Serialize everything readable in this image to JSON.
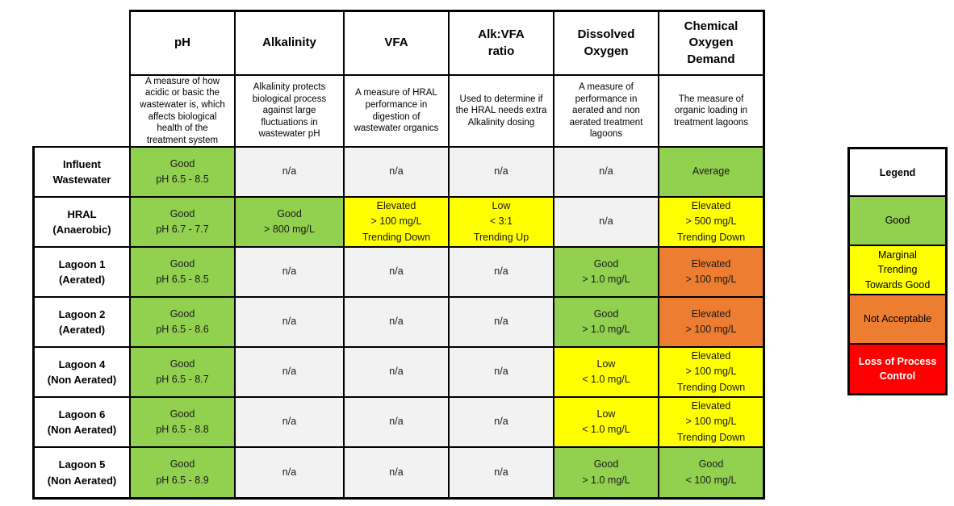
{
  "status_colors": {
    "good": "#92D050",
    "marginal": "#FFFF00",
    "not_acceptable": "#ED7D31",
    "loss_of_process_control": "#FF0000",
    "na": "#F2F2F2",
    "grid_line": "#000000",
    "background": "#FFFFFF"
  },
  "chart_data": {
    "type": "table",
    "columns": [
      {
        "title": "pH",
        "description": "A measure of how\nacidic or basic the\nwastewater is, which\naffects biological\nhealth of the\ntreatment system"
      },
      {
        "title": "Alkalinity",
        "description": "Alkalinity protects\nbiological process\nagainst large\nfluctuations in\nwastewater pH"
      },
      {
        "title": "VFA",
        "description": "A measure of HRAL\nperformance in\ndigestion of\nwastewater organics"
      },
      {
        "title": "Alk:VFA\nratio",
        "description": "Used to determine if\nthe HRAL needs extra\nAlkalinity dosing"
      },
      {
        "title": "Dissolved\nOxygen",
        "description": "A measure of\nperformance in\naerated and non\naerated treatment\nlagoons"
      },
      {
        "title": "Chemical\nOxygen\nDemand",
        "description": "The measure of\norganic loading in\ntreatment lagoons"
      }
    ],
    "rows": [
      {
        "label": "Influent\nWastewater",
        "cells": [
          {
            "text": "Good\npH 6.5 - 8.5",
            "status": "good"
          },
          {
            "text": "n/a",
            "status": "na"
          },
          {
            "text": "n/a",
            "status": "na"
          },
          {
            "text": "n/a",
            "status": "na"
          },
          {
            "text": "n/a",
            "status": "na"
          },
          {
            "text": "Average",
            "status": "good"
          }
        ]
      },
      {
        "label": "HRAL\n(Anaerobic)",
        "cells": [
          {
            "text": "Good\npH 6.7 - 7.7",
            "status": "good"
          },
          {
            "text": "Good\n> 800 mg/L",
            "status": "good"
          },
          {
            "text": "Elevated\n> 100 mg/L\nTrending Down",
            "status": "marginal"
          },
          {
            "text": "Low\n< 3:1\nTrending Up",
            "status": "marginal"
          },
          {
            "text": "n/a",
            "status": "na"
          },
          {
            "text": "Elevated\n> 500 mg/L\nTrending Down",
            "status": "marginal"
          }
        ]
      },
      {
        "label": "Lagoon 1\n(Aerated)",
        "cells": [
          {
            "text": "Good\npH 6.5 - 8.5",
            "status": "good"
          },
          {
            "text": "n/a",
            "status": "na"
          },
          {
            "text": "n/a",
            "status": "na"
          },
          {
            "text": "n/a",
            "status": "na"
          },
          {
            "text": "Good\n> 1.0 mg/L",
            "status": "good"
          },
          {
            "text": "Elevated\n> 100 mg/L",
            "status": "not_acceptable"
          }
        ]
      },
      {
        "label": "Lagoon 2\n(Aerated)",
        "cells": [
          {
            "text": "Good\npH 6.5 - 8.6",
            "status": "good"
          },
          {
            "text": "n/a",
            "status": "na"
          },
          {
            "text": "n/a",
            "status": "na"
          },
          {
            "text": "n/a",
            "status": "na"
          },
          {
            "text": "Good\n> 1.0 mg/L",
            "status": "good"
          },
          {
            "text": "Elevated\n> 100 mg/L",
            "status": "not_acceptable"
          }
        ]
      },
      {
        "label": "Lagoon 4\n(Non Aerated)",
        "cells": [
          {
            "text": "Good\npH 6.5 - 8.7",
            "status": "good"
          },
          {
            "text": "n/a",
            "status": "na"
          },
          {
            "text": "n/a",
            "status": "na"
          },
          {
            "text": "n/a",
            "status": "na"
          },
          {
            "text": "Low\n< 1.0 mg/L",
            "status": "marginal"
          },
          {
            "text": "Elevated\n> 100 mg/L\nTrending Down",
            "status": "marginal"
          }
        ]
      },
      {
        "label": "Lagoon 6\n(Non Aerated)",
        "cells": [
          {
            "text": "Good\npH 6.5 - 8.8",
            "status": "good"
          },
          {
            "text": "n/a",
            "status": "na"
          },
          {
            "text": "n/a",
            "status": "na"
          },
          {
            "text": "n/a",
            "status": "na"
          },
          {
            "text": "Low\n< 1.0 mg/L",
            "status": "marginal"
          },
          {
            "text": "Elevated\n> 100 mg/L\nTrending Down",
            "status": "marginal"
          }
        ]
      },
      {
        "label": "Lagoon 5\n(Non Aerated)",
        "cells": [
          {
            "text": "Good\npH 6.5 - 8.9",
            "status": "good"
          },
          {
            "text": "n/a",
            "status": "na"
          },
          {
            "text": "n/a",
            "status": "na"
          },
          {
            "text": "n/a",
            "status": "na"
          },
          {
            "text": "Good\n> 1.0 mg/L",
            "status": "good"
          },
          {
            "text": "Good\n< 100 mg/L",
            "status": "good"
          }
        ]
      }
    ],
    "legend": {
      "title": "Legend",
      "items": [
        {
          "label": "Good",
          "status": "good"
        },
        {
          "label": "Marginal\nTrending\nTowards Good",
          "status": "marginal"
        },
        {
          "label": "Not Acceptable",
          "status": "not_acceptable"
        },
        {
          "label": "Loss of Process\nControl",
          "status": "loss_of_process_control"
        }
      ]
    }
  }
}
